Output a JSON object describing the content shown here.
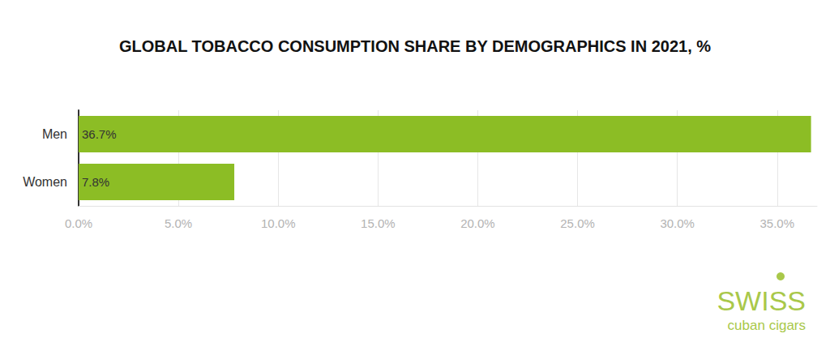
{
  "chart_data": {
    "type": "bar",
    "title": "GLOBAL TOBACCO CONSUMPTION SHARE BY DEMOGRAPHICS IN 2021, %",
    "orientation": "horizontal",
    "categories": [
      "Men",
      "Women"
    ],
    "values": [
      36.7,
      7.8
    ],
    "value_labels": [
      "36.7%",
      "7.8%"
    ],
    "data_labels": true,
    "color": "#8cbd25",
    "xlim": [
      0,
      37
    ],
    "xticks": [
      {
        "value": 0,
        "label": "0.0%"
      },
      {
        "value": 5,
        "label": "5.0%"
      },
      {
        "value": 10,
        "label": "10.0%"
      },
      {
        "value": 15,
        "label": "15.0%"
      },
      {
        "value": 20,
        "label": "20.0%"
      },
      {
        "value": 25,
        "label": "25.0%"
      },
      {
        "value": 30,
        "label": "30.0%"
      },
      {
        "value": 35,
        "label": "35.0%"
      }
    ],
    "grid": true,
    "annotations": [
      "SWISS",
      "cuban cigars"
    ]
  }
}
